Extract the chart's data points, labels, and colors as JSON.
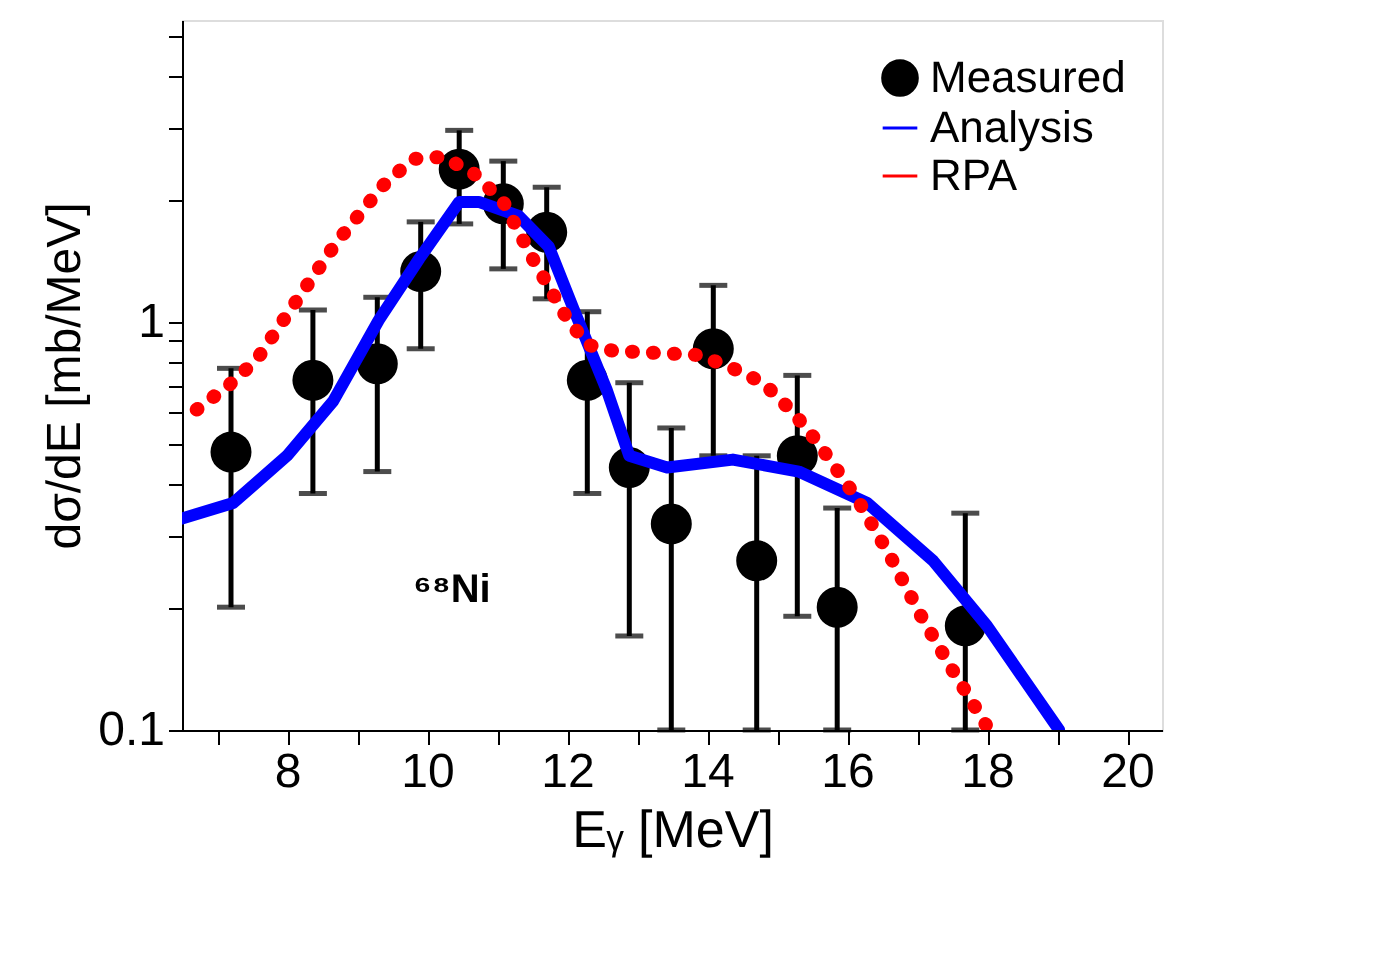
{
  "chart_data": {
    "type": "scatter",
    "xlabel": "Eᵧ [MeV]",
    "ylabel": "dσ/dE [mb/MeV]",
    "log": "y",
    "xlim": [
      6.5,
      20.5
    ],
    "xticks": [
      {
        "value": 7,
        "label": null
      },
      8,
      {
        "value": 9,
        "label": null
      },
      10,
      {
        "value": 11,
        "label": null
      },
      12,
      {
        "value": 13,
        "label": null
      },
      14,
      {
        "value": 15,
        "label": null
      },
      16,
      {
        "value": 17,
        "label": null
      },
      18,
      {
        "value": 19,
        "label": null
      },
      20
    ],
    "ylim": [
      0.1,
      5.5
    ],
    "yticks": [
      0.1,
      {
        "value": 0.2,
        "label": null
      },
      {
        "value": 0.3,
        "label": null
      },
      {
        "value": 0.4,
        "label": null
      },
      {
        "value": 0.5,
        "label": null
      },
      {
        "value": 0.6,
        "label": null
      },
      {
        "value": 0.7,
        "label": null
      },
      {
        "value": 0.8,
        "label": null
      },
      {
        "value": 0.9,
        "label": null
      },
      1,
      {
        "value": 2,
        "label": null
      },
      {
        "value": 3,
        "label": null
      },
      {
        "value": 4,
        "label": null
      },
      {
        "value": 5,
        "label": null
      }
    ],
    "grid": false,
    "legend": "top right",
    "annotations": [
      "⁶⁸Ni"
    ],
    "series": [
      {
        "name": "Measured",
        "marker": "circle",
        "color": "#000000",
        "x": [
          7.2,
          8.37,
          9.29,
          9.91,
          10.46,
          11.09,
          11.71,
          12.29,
          12.89,
          13.49,
          14.09,
          14.71,
          15.29,
          15.86,
          17.69
        ],
        "values": [
          0.48,
          0.72,
          0.79,
          1.33,
          2.37,
          1.95,
          1.66,
          0.72,
          0.44,
          0.32,
          0.86,
          0.26,
          0.47,
          0.2,
          0.18
        ],
        "errors": [
          [
            0.2,
            0.77
          ],
          [
            0.38,
            1.07
          ],
          [
            0.43,
            1.15
          ],
          [
            0.86,
            1.76
          ],
          [
            1.74,
            2.95
          ],
          [
            1.35,
            2.48
          ],
          [
            1.14,
            2.14
          ],
          [
            0.38,
            1.06
          ],
          [
            0.17,
            0.71
          ],
          [
            0.1,
            0.55
          ],
          [
            0.47,
            1.23
          ],
          [
            0.1,
            0.47
          ],
          [
            0.19,
            0.74
          ],
          [
            0.1,
            0.35
          ],
          [
            0.1,
            0.34
          ]
        ]
      },
      {
        "name": "Analysis",
        "type": "line",
        "line_style": "solid",
        "color": "#0000ff",
        "x": [
          6.5,
          7.23,
          8.0,
          8.66,
          9.31,
          9.89,
          10.46,
          10.74,
          11.31,
          11.74,
          12.09,
          12.57,
          12.89,
          13.43,
          14.37,
          15.31,
          16.29,
          17.23,
          18.0,
          19.03
        ],
        "values": [
          0.33,
          0.36,
          0.47,
          0.64,
          1.01,
          1.43,
          1.97,
          1.97,
          1.82,
          1.53,
          1.08,
          0.68,
          0.47,
          0.44,
          0.46,
          0.43,
          0.36,
          0.26,
          0.18,
          0.1
        ]
      },
      {
        "name": "RPA",
        "type": "line",
        "line_style": "dotted",
        "color": "#ff0000",
        "x": [
          6.71,
          7.17,
          7.57,
          8.14,
          8.71,
          9.37,
          9.8,
          10.23,
          10.66,
          11.09,
          11.51,
          12.0,
          12.29,
          12.66,
          13.89,
          14.37,
          14.8,
          15.23,
          15.57,
          16.14,
          16.6,
          17.06,
          17.51,
          18.03
        ],
        "values": [
          0.61,
          0.7,
          0.81,
          1.13,
          1.57,
          2.16,
          2.51,
          2.54,
          2.32,
          1.97,
          1.43,
          1.02,
          0.88,
          0.85,
          0.83,
          0.77,
          0.71,
          0.6,
          0.51,
          0.37,
          0.27,
          0.19,
          0.14,
          0.1
        ]
      }
    ]
  }
}
